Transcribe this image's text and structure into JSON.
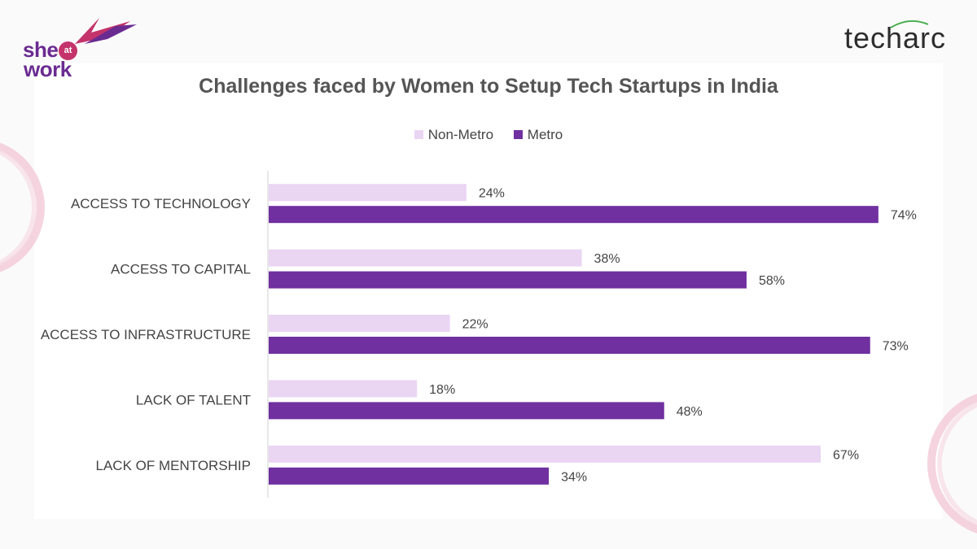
{
  "logos": {
    "left": {
      "line1": "she",
      "badge": "at",
      "line2": "work"
    },
    "right": "techarc"
  },
  "chart_data": {
    "type": "bar",
    "orientation": "horizontal",
    "title": "Challenges faced by Women to Setup Tech Startups in India",
    "categories": [
      "ACCESS TO TECHNOLOGY",
      "ACCESS TO CAPITAL",
      "ACCESS TO INFRASTRUCTURE",
      "LACK OF TALENT",
      "LACK OF MENTORSHIP"
    ],
    "series": [
      {
        "name": "Non-Metro",
        "color": "#ead5f3",
        "values": [
          24,
          38,
          22,
          18,
          67
        ]
      },
      {
        "name": "Metro",
        "color": "#7030a0",
        "values": [
          74,
          58,
          73,
          48,
          34
        ]
      }
    ],
    "value_suffix": "%",
    "xlim": [
      0,
      100
    ],
    "legend": "top-center",
    "grid": false
  }
}
